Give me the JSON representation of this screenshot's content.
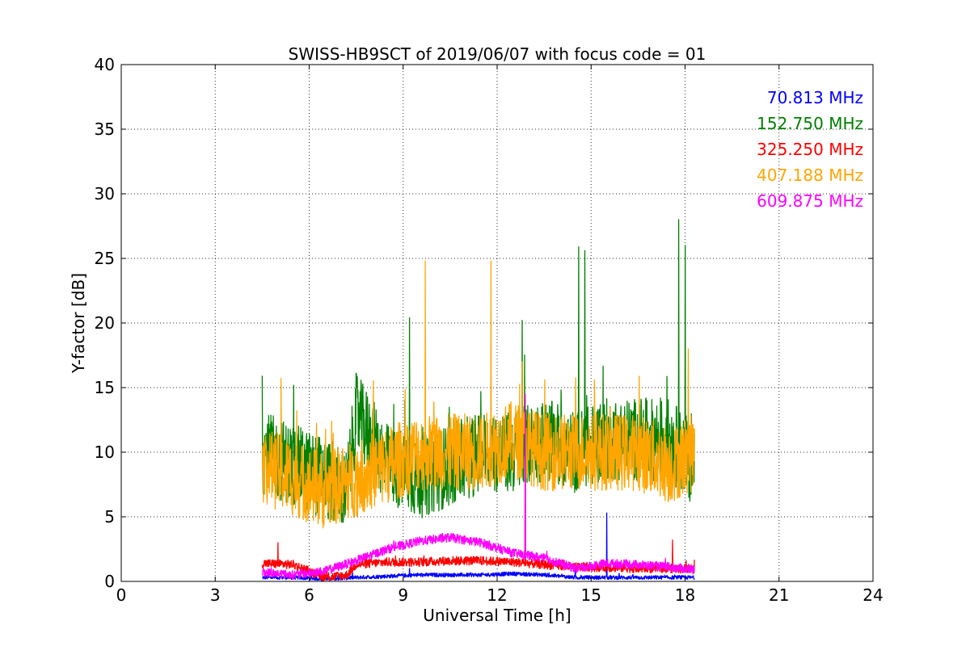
{
  "chart_data": {
    "type": "line",
    "title": "SWISS-HB9SCT of 2019/06/07 with focus code = 01",
    "xlabel": "Universal Time [h]",
    "ylabel": "Y-factor [dB]",
    "xlim": [
      0,
      24
    ],
    "ylim": [
      0,
      40
    ],
    "xticks": [
      "0",
      "3",
      "6",
      "9",
      "12",
      "15",
      "18",
      "21",
      "24"
    ],
    "yticks": [
      "0",
      "5",
      "10",
      "15",
      "20",
      "25",
      "30",
      "35",
      "40"
    ],
    "grid": true,
    "legend_placement": "top-right",
    "x_range_of_data": [
      4.5,
      18.3
    ],
    "series": [
      {
        "name": "70.813 MHz",
        "color": "#0000ff",
        "x": [
          4.5,
          5.5,
          6.5,
          7.5,
          8.5,
          9.5,
          10.5,
          11.5,
          12.5,
          13.5,
          14.5,
          15.5,
          16.5,
          17.5,
          18.3
        ],
        "y": [
          0.3,
          0.3,
          0.2,
          0.3,
          0.4,
          0.5,
          0.5,
          0.5,
          0.6,
          0.5,
          0.3,
          0.3,
          0.3,
          0.3,
          0.3
        ],
        "spikes": [
          [
            15.5,
            5.3
          ],
          [
            14.5,
            1.2
          ],
          [
            9.2,
            1.0
          ]
        ]
      },
      {
        "name": "152.750 MHz",
        "color": "#008000",
        "x": [
          4.5,
          5.5,
          6.5,
          7.2,
          7.5,
          8.5,
          9.5,
          10.5,
          11.5,
          12.5,
          13.5,
          14.5,
          15.5,
          16.5,
          17.5,
          18.3
        ],
        "y": [
          10,
          9,
          8,
          7,
          13,
          9,
          8,
          9,
          10,
          10,
          11,
          10,
          11,
          11,
          11,
          9
        ],
        "spikes": [
          [
            9.2,
            20.4
          ],
          [
            12.8,
            20.2
          ],
          [
            14.6,
            25.9
          ],
          [
            14.8,
            25.6
          ],
          [
            17.8,
            28.0
          ],
          [
            18.0,
            26.0
          ]
        ]
      },
      {
        "name": "325.250 MHz",
        "color": "#ff0000",
        "x": [
          4.5,
          5.5,
          6.5,
          7.2,
          7.5,
          8.5,
          9.5,
          10.5,
          11.5,
          12.5,
          13.5,
          14.5,
          15.5,
          16.5,
          17.5,
          18.3
        ],
        "y": [
          1.4,
          1.3,
          0.3,
          0.5,
          1.3,
          1.5,
          1.5,
          1.6,
          1.6,
          1.5,
          1.3,
          1.1,
          1.1,
          1.0,
          1.0,
          1.0
        ],
        "spikes": [
          [
            12.9,
            14.0
          ],
          [
            5.0,
            3.0
          ],
          [
            17.6,
            3.2
          ]
        ]
      },
      {
        "name": "407.188 MHz",
        "color": "#ffa500",
        "x": [
          4.5,
          5.5,
          6.5,
          7.5,
          8.5,
          9.5,
          10.5,
          11.5,
          12.5,
          13.5,
          14.5,
          15.5,
          16.5,
          17.5,
          18.3
        ],
        "y": [
          9,
          8,
          7,
          8,
          9,
          10,
          10,
          10,
          11,
          10,
          10,
          10,
          10,
          9,
          10
        ],
        "spikes": [
          [
            5.1,
            15.7
          ],
          [
            9.7,
            24.8
          ],
          [
            11.8,
            24.8
          ],
          [
            12.8,
            17.0
          ],
          [
            18.1,
            18.0
          ]
        ]
      },
      {
        "name": "609.875 MHz",
        "color": "#ff00ff",
        "x": [
          4.5,
          5.5,
          6.5,
          7.5,
          8.5,
          9.5,
          10.5,
          11.5,
          12.5,
          13.5,
          14.5,
          15.5,
          16.5,
          17.5,
          18.3
        ],
        "y": [
          0.7,
          0.5,
          0.8,
          1.6,
          2.5,
          3.1,
          3.4,
          3.0,
          2.2,
          1.8,
          1.0,
          1.4,
          1.3,
          1.1,
          0.9
        ],
        "spikes": [
          [
            12.9,
            14.5
          ]
        ]
      }
    ]
  }
}
